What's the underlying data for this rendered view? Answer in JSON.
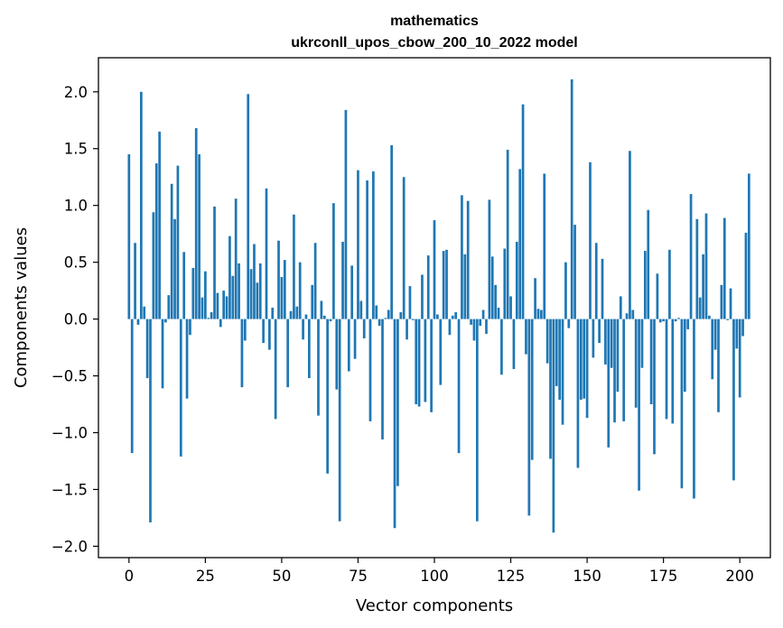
{
  "chart_data": {
    "type": "bar",
    "title": "mathematics",
    "subtitle": "ukrconll_upos_cbow_200_10_2022 model",
    "xlabel": "Vector components",
    "ylabel": "Components values",
    "xlim": [
      -10,
      210
    ],
    "ylim": [
      -2.1,
      2.3
    ],
    "xticks": [
      0,
      25,
      50,
      75,
      100,
      125,
      150,
      175,
      200
    ],
    "yticks": [
      -2.0,
      -1.5,
      -1.0,
      -0.5,
      0.0,
      0.5,
      1.0,
      1.5,
      2.0
    ],
    "ytick_labels": [
      "−2.0",
      "−1.5",
      "−1.0",
      "−0.5",
      "0.0",
      "0.5",
      "1.0",
      "1.5",
      "2.0"
    ],
    "bar_color": "#1f77b4",
    "values": [
      1.45,
      -1.18,
      0.67,
      -0.05,
      2.0,
      0.11,
      -0.52,
      -1.79,
      0.94,
      1.37,
      1.65,
      -0.61,
      -0.03,
      0.21,
      1.19,
      0.88,
      1.35,
      -1.21,
      0.59,
      -0.7,
      -0.14,
      0.45,
      1.68,
      1.45,
      0.19,
      0.42,
      0.01,
      0.06,
      0.99,
      0.23,
      -0.07,
      0.25,
      0.2,
      0.73,
      0.38,
      1.06,
      0.49,
      -0.6,
      -0.19,
      1.98,
      0.44,
      0.66,
      0.32,
      0.49,
      -0.21,
      1.15,
      -0.27,
      0.1,
      -0.88,
      0.69,
      0.37,
      0.52,
      -0.6,
      0.07,
      0.92,
      0.11,
      0.5,
      -0.18,
      0.04,
      -0.52,
      0.3,
      0.67,
      -0.85,
      0.16,
      0.03,
      -1.36,
      -0.02,
      1.02,
      -0.62,
      -1.78,
      0.68,
      1.84,
      -0.46,
      0.47,
      -0.35,
      1.31,
      0.16,
      -0.17,
      1.22,
      -0.9,
      1.3,
      0.12,
      -0.06,
      -1.06,
      0.01,
      0.08,
      1.53,
      -1.84,
      -1.47,
      0.06,
      1.25,
      -0.18,
      0.29,
      -0.01,
      -0.75,
      -0.77,
      0.39,
      -0.73,
      0.56,
      -0.82,
      0.87,
      0.04,
      -0.58,
      0.6,
      0.61,
      -0.14,
      0.03,
      0.06,
      -1.18,
      1.09,
      0.57,
      1.04,
      -0.05,
      -0.19,
      -1.78,
      -0.06,
      0.08,
      -0.13,
      1.05,
      0.55,
      0.3,
      0.1,
      -0.49,
      0.62,
      1.49,
      0.2,
      -0.44,
      0.68,
      1.32,
      1.89,
      -0.31,
      -1.73,
      -1.24,
      0.36,
      0.09,
      0.08,
      1.28,
      -0.39,
      -1.23,
      -1.88,
      -0.59,
      -0.71,
      -0.93,
      0.5,
      -0.08,
      2.11,
      0.83,
      -1.31,
      -0.71,
      -0.7,
      -0.87,
      1.38,
      -0.34,
      0.67,
      -0.21,
      0.53,
      -0.4,
      -1.13,
      -0.43,
      -0.91,
      -0.64,
      0.2,
      -0.9,
      0.05,
      1.48,
      0.08,
      -0.78,
      -1.51,
      -0.43,
      0.6,
      0.96,
      -0.75,
      -1.19,
      0.4,
      -0.03,
      -0.02,
      -0.88,
      0.61,
      -0.92,
      -0.02,
      0.01,
      -1.49,
      -0.64,
      -0.09,
      1.1,
      -1.58,
      0.88,
      0.19,
      0.57,
      0.93,
      0.03,
      -0.53,
      -0.27,
      -0.82,
      0.3,
      0.89,
      -0.01,
      0.27,
      -1.42,
      -0.26,
      -0.69,
      -0.15,
      0.76,
      1.28
    ]
  }
}
